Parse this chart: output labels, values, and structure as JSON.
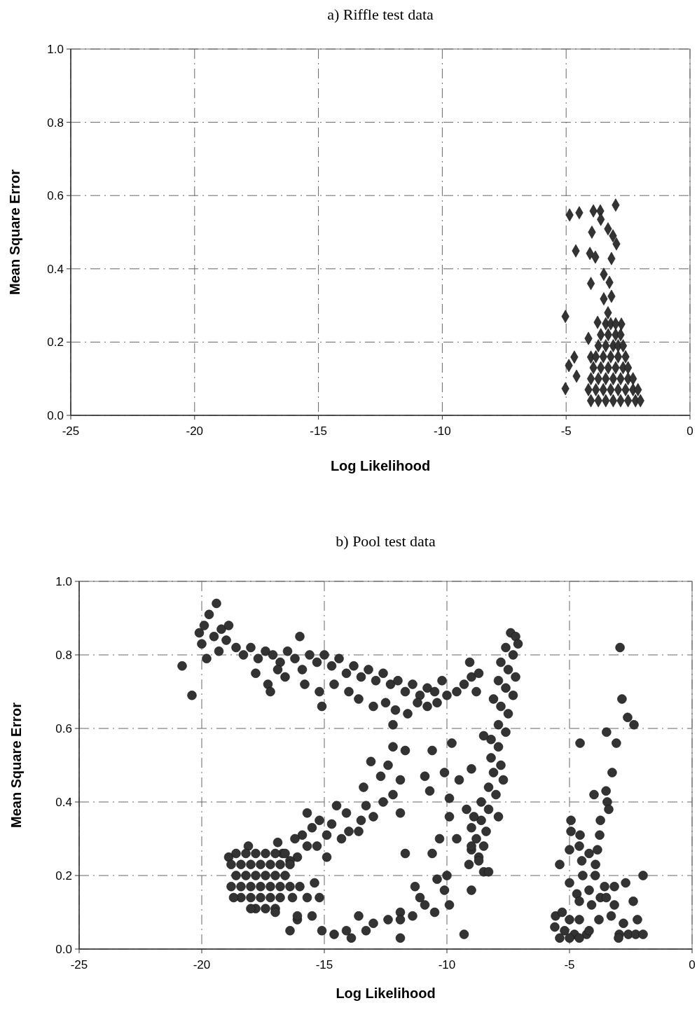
{
  "chart_data": [
    {
      "type": "scatter",
      "title": "a) Riffle test data",
      "xlabel": "Log Likelihood",
      "ylabel": "Mean Square Error",
      "marker": "diamond",
      "grid": true,
      "xlim": [
        -25,
        0
      ],
      "xticks": [
        -25,
        -20,
        -15,
        -10,
        -5,
        0
      ],
      "ylim": [
        0,
        1
      ],
      "yticks": [
        {
          "value": 0,
          "label": "0.0"
        },
        {
          "value": 0.2,
          "label": "0.2"
        },
        {
          "value": 0.4,
          "label": "0.4"
        },
        {
          "value": 0.6,
          "label": "0.6"
        },
        {
          "value": 0.8,
          "label": "0.8"
        },
        {
          "value": 1,
          "label": "1.0"
        }
      ],
      "series": [
        {
          "color": "#333333",
          "x": [
            -3.0,
            -4.86,
            -4.47,
            -3.9,
            -3.62,
            -3.6,
            -3.96,
            -3.31,
            -3.11,
            -2.97,
            -4.61,
            -4.04,
            -3.82,
            -3.17,
            -3.48,
            -4.0,
            -3.25,
            -3.48,
            -3.17,
            -5.03,
            -3.31,
            -2.77,
            -3.73,
            -4.67,
            -4.89,
            -4.58,
            -5.03,
            -4.0,
            -4.1,
            -3.4,
            -3.2,
            -3.0,
            -3.6,
            -3.3,
            -3.0,
            -2.8,
            -3.7,
            -3.4,
            -3.1,
            -2.9,
            -2.7,
            -3.8,
            -3.5,
            -3.2,
            -2.9,
            -2.6,
            -3.9,
            -3.6,
            -3.3,
            -3.0,
            -2.7,
            -2.5,
            -4.0,
            -3.7,
            -3.4,
            -3.1,
            -2.8,
            -2.5,
            -2.3,
            -4.1,
            -3.8,
            -3.5,
            -3.2,
            -2.9,
            -2.6,
            -2.3,
            -2.1,
            -4.0,
            -3.7,
            -3.4,
            -3.1,
            -2.8,
            -2.5,
            -2.2,
            -2.0
          ],
          "values": [
            0.574,
            0.547,
            0.553,
            0.558,
            0.558,
            0.535,
            0.5,
            0.509,
            0.49,
            0.468,
            0.449,
            0.442,
            0.432,
            0.428,
            0.385,
            0.36,
            0.363,
            0.318,
            0.325,
            0.27,
            0.28,
            0.249,
            0.254,
            0.159,
            0.136,
            0.107,
            0.073,
            0.159,
            0.21,
            0.25,
            0.25,
            0.25,
            0.22,
            0.22,
            0.22,
            0.22,
            0.19,
            0.19,
            0.19,
            0.19,
            0.19,
            0.16,
            0.16,
            0.16,
            0.16,
            0.16,
            0.13,
            0.13,
            0.13,
            0.13,
            0.13,
            0.13,
            0.1,
            0.1,
            0.1,
            0.1,
            0.1,
            0.1,
            0.1,
            0.07,
            0.07,
            0.07,
            0.07,
            0.07,
            0.07,
            0.07,
            0.07,
            0.04,
            0.04,
            0.04,
            0.04,
            0.04,
            0.04,
            0.04,
            0.04
          ]
        }
      ]
    },
    {
      "type": "scatter",
      "title": "b) Pool test data",
      "xlabel": "Log Likelihood",
      "ylabel": "Mean Square Error",
      "marker": "circle",
      "grid": true,
      "xlim": [
        -25,
        0
      ],
      "xticks": [
        -25,
        -20,
        -15,
        -10,
        -5,
        0
      ],
      "ylim": [
        0,
        1
      ],
      "yticks": [
        {
          "value": 0,
          "label": "0.0"
        },
        {
          "value": 0.2,
          "label": "0.2"
        },
        {
          "value": 0.4,
          "label": "0.4"
        },
        {
          "value": 0.6,
          "label": "0.6"
        },
        {
          "value": 0.8,
          "label": "0.8"
        },
        {
          "value": 1,
          "label": "1.0"
        }
      ],
      "series": [
        {
          "color": "#333333",
          "x": [
            -20.8,
            -20.4,
            -19.4,
            -20.1,
            -19.9,
            -19.7,
            -20.0,
            -19.8,
            -19.5,
            -19.2,
            -19.0,
            -18.9,
            -19.3,
            -18.6,
            -18.3,
            -18.0,
            -17.7,
            -17.4,
            -17.1,
            -16.8,
            -16.5,
            -16.2,
            -16.0,
            -15.9,
            -15.6,
            -15.3,
            -15.0,
            -14.7,
            -14.4,
            -14.1,
            -13.8,
            -13.5,
            -13.2,
            -12.9,
            -12.6,
            -12.3,
            -12.0,
            -11.7,
            -11.4,
            -11.1,
            -10.8,
            -10.5,
            -10.2,
            -17.8,
            -17.3,
            -17.2,
            -16.6,
            -16.9,
            -15.8,
            -15.2,
            -15.1,
            -14.6,
            -14.0,
            -13.6,
            -13.0,
            -12.5,
            -12.1,
            -11.6,
            -11.2,
            -10.8,
            -10.4,
            -10.0,
            -9.6,
            -9.3,
            -9.0,
            -8.7,
            -8.8,
            -9.07,
            -7.4,
            -7.2,
            -7.1,
            -7.6,
            -7.3,
            -7.8,
            -7.5,
            -7.2,
            -7.9,
            -7.6,
            -7.3,
            -8.1,
            -7.8,
            -7.5,
            -7.9,
            -7.6,
            -8.2,
            -8.5,
            -7.9,
            -8.2,
            -7.8,
            -8.1,
            -7.7,
            -8.3,
            -8.0,
            -8.6,
            -8.3,
            -7.9,
            -8.6,
            -8.9,
            -8.4,
            -8.8,
            -8.5,
            -9.0,
            -8.7,
            -9.1,
            -8.5,
            -8.3,
            -10.6,
            -9.8,
            -9.0,
            -10.9,
            -10.1,
            -9.5,
            -10.7,
            -9.9,
            -9.2,
            -9.9,
            -9.0,
            -10.3,
            -9.6,
            -9.0,
            -10.6,
            -11.7,
            -8.7,
            -10.4,
            -10.0,
            -10.1,
            -9.9,
            -9.0,
            -11.3,
            -11.1,
            -9.3,
            -10.5,
            -10.9,
            -11.4,
            -11.9,
            -11.9,
            -12.4,
            -13.0,
            -13.3,
            -11.9,
            -13.6,
            -13.9,
            -14.1,
            -14.6,
            -15.1,
            -15.5,
            -16.4,
            -16.1,
            -12.2,
            -12.2,
            -11.7,
            -13.1,
            -12.4,
            -12.7,
            -11.9,
            -13.4,
            -12.2,
            -12.6,
            -13.3,
            -11.9,
            -13.0,
            -13.5,
            -14.1,
            -14.5,
            -15.7,
            -15.2,
            -14.7,
            -14.0,
            -13.6,
            -14.3,
            -14.9,
            -15.5,
            -15.9,
            -16.2,
            -15.7,
            -14.9,
            -16.9,
            -16.7,
            -16.1,
            -15.3,
            -16.4,
            -18.1,
            -18.9,
            -18.6,
            -18.2,
            -17.8,
            -17.4,
            -17.0,
            -16.6,
            -18.8,
            -18.4,
            -18.0,
            -17.6,
            -17.2,
            -16.8,
            -16.4,
            -18.6,
            -18.2,
            -17.8,
            -17.4,
            -17.0,
            -16.6,
            -18.8,
            -18.4,
            -18.0,
            -17.6,
            -17.2,
            -16.8,
            -16.4,
            -18.4,
            -18.0,
            -17.6,
            -17.2,
            -16.8,
            -17.8,
            -17.4,
            -17.0,
            -16.0,
            -15.4,
            -15.2,
            -15.7,
            -16.3,
            -18.7,
            -18.0,
            -17.0,
            -16.1,
            -2.94,
            -2.86,
            -2.63,
            -2.37,
            -3.49,
            -3.09,
            -4.57,
            -3.26,
            -4.0,
            -3.51,
            -3.46,
            -3.4,
            -3.74,
            -4.94,
            -4.94,
            -4.57,
            -3.77,
            -5.0,
            -4.6,
            -3.86,
            -4.2,
            -5.4,
            -4.5,
            -3.94,
            -4.46,
            -3.95,
            -2.0,
            -2.71,
            -3.57,
            -3.17,
            -5.0,
            -4.7,
            -4.2,
            -3.74,
            -3.5,
            -2.4,
            -3.17,
            -4.6,
            -4.1,
            -3.8,
            -3.3,
            -2.23,
            -5.57,
            -5.3,
            -5.0,
            -4.6,
            -5.6,
            -5.2,
            -4.8,
            -4.3,
            -5.4,
            -5.0,
            -4.6,
            -4.2,
            -2.8,
            -2.97,
            -2.6,
            -2.3,
            -2.0,
            -3.0
          ],
          "values": [
            0.77,
            0.69,
            0.94,
            0.86,
            0.88,
            0.91,
            0.83,
            0.79,
            0.85,
            0.87,
            0.84,
            0.88,
            0.81,
            0.82,
            0.8,
            0.82,
            0.79,
            0.81,
            0.8,
            0.78,
            0.81,
            0.79,
            0.85,
            0.76,
            0.8,
            0.78,
            0.8,
            0.77,
            0.79,
            0.75,
            0.77,
            0.74,
            0.76,
            0.73,
            0.75,
            0.72,
            0.73,
            0.7,
            0.72,
            0.69,
            0.71,
            0.7,
            0.73,
            0.75,
            0.72,
            0.7,
            0.74,
            0.76,
            0.72,
            0.7,
            0.66,
            0.72,
            0.7,
            0.68,
            0.66,
            0.67,
            0.65,
            0.64,
            0.67,
            0.66,
            0.67,
            0.69,
            0.7,
            0.72,
            0.74,
            0.75,
            0.7,
            0.78,
            0.86,
            0.85,
            0.83,
            0.82,
            0.8,
            0.78,
            0.76,
            0.74,
            0.73,
            0.71,
            0.69,
            0.68,
            0.66,
            0.64,
            0.61,
            0.59,
            0.57,
            0.58,
            0.55,
            0.52,
            0.5,
            0.48,
            0.46,
            0.44,
            0.42,
            0.4,
            0.38,
            0.36,
            0.35,
            0.36,
            0.32,
            0.3,
            0.28,
            0.27,
            0.25,
            0.23,
            0.21,
            0.21,
            0.54,
            0.56,
            0.49,
            0.47,
            0.48,
            0.46,
            0.43,
            0.41,
            0.38,
            0.36,
            0.33,
            0.3,
            0.3,
            0.28,
            0.26,
            0.26,
            0.24,
            0.19,
            0.2,
            0.16,
            0.12,
            0.16,
            0.17,
            0.14,
            0.04,
            0.1,
            0.12,
            0.09,
            0.1,
            0.08,
            0.08,
            0.07,
            0.05,
            0.03,
            0.09,
            0.03,
            0.05,
            0.04,
            0.05,
            0.09,
            0.05,
            0.08,
            0.61,
            0.55,
            0.54,
            0.51,
            0.5,
            0.47,
            0.46,
            0.44,
            0.42,
            0.4,
            0.39,
            0.37,
            0.36,
            0.35,
            0.37,
            0.39,
            0.37,
            0.35,
            0.34,
            0.32,
            0.32,
            0.3,
            0.31,
            0.33,
            0.31,
            0.3,
            0.28,
            0.25,
            0.29,
            0.26,
            0.25,
            0.28,
            0.24,
            0.28,
            0.25,
            0.26,
            0.26,
            0.26,
            0.26,
            0.26,
            0.26,
            0.23,
            0.23,
            0.23,
            0.23,
            0.23,
            0.23,
            0.23,
            0.2,
            0.2,
            0.2,
            0.2,
            0.2,
            0.2,
            0.17,
            0.17,
            0.17,
            0.17,
            0.17,
            0.17,
            0.17,
            0.14,
            0.14,
            0.14,
            0.14,
            0.14,
            0.11,
            0.11,
            0.11,
            0.17,
            0.18,
            0.14,
            0.14,
            0.14,
            0.14,
            0.11,
            0.1,
            0.09,
            0.82,
            0.68,
            0.63,
            0.61,
            0.59,
            0.56,
            0.56,
            0.48,
            0.42,
            0.43,
            0.4,
            0.38,
            0.35,
            0.35,
            0.32,
            0.31,
            0.31,
            0.27,
            0.28,
            0.27,
            0.26,
            0.23,
            0.24,
            0.23,
            0.2,
            0.2,
            0.2,
            0.18,
            0.17,
            0.17,
            0.18,
            0.15,
            0.16,
            0.14,
            0.14,
            0.13,
            0.12,
            0.13,
            0.12,
            0.08,
            0.09,
            0.08,
            0.09,
            0.1,
            0.08,
            0.08,
            0.06,
            0.05,
            0.04,
            0.04,
            0.03,
            0.03,
            0.03,
            0.05,
            0.07,
            0.04,
            0.04,
            0.04,
            0.04,
            0.03
          ]
        }
      ]
    }
  ]
}
